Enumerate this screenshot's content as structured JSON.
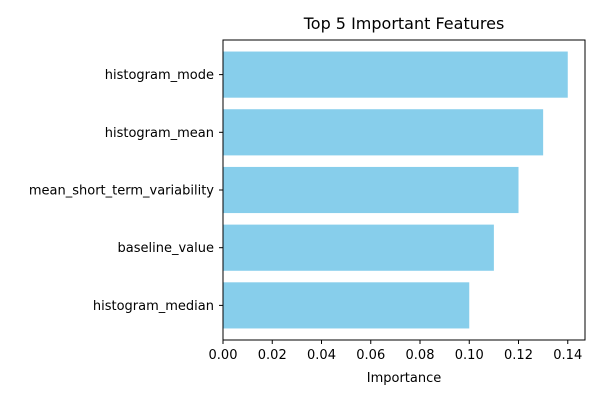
{
  "chart_data": {
    "type": "bar",
    "orientation": "horizontal",
    "title": "Top 5 Important Features",
    "xlabel": "Importance",
    "ylabel": "",
    "categories": [
      "histogram_mode",
      "histogram_mean",
      "mean_short_term_variability",
      "baseline_value",
      "histogram_median"
    ],
    "values": [
      0.14,
      0.13,
      0.12,
      0.11,
      0.1
    ],
    "xlim": [
      0,
      0.147
    ],
    "xticks": [
      0.0,
      0.02,
      0.04,
      0.06,
      0.08,
      0.1,
      0.12,
      0.14
    ],
    "xtick_labels": [
      "0.00",
      "0.02",
      "0.04",
      "0.06",
      "0.08",
      "0.10",
      "0.12",
      "0.14"
    ],
    "bar_color": "#87ceeb",
    "grid": false,
    "legend": "none"
  }
}
